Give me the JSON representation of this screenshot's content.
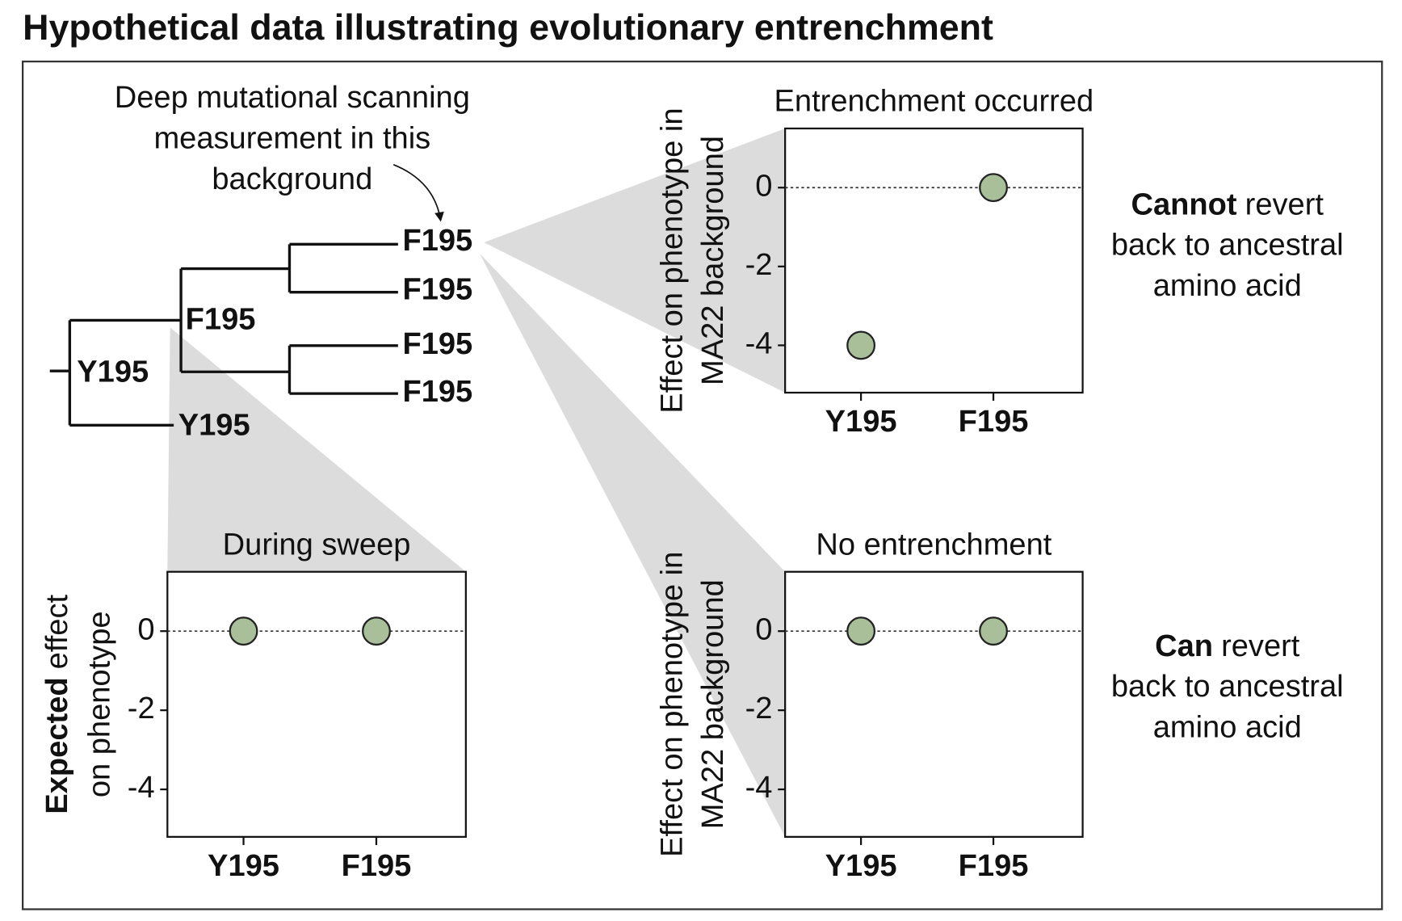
{
  "title": "Hypothetical data illustrating evolutionary entrenchment",
  "annotation": {
    "lines": [
      "Deep mutational scanning",
      "measurement in this",
      "background"
    ]
  },
  "tree": {
    "nodes": [
      {
        "label": "Y195",
        "color": "#a07a45"
      },
      {
        "label": "F195",
        "color": "#4a8aa5"
      },
      {
        "label": "Y195",
        "color": "#a07a45"
      },
      {
        "label": "F195",
        "color": "#4a8aa5"
      },
      {
        "label": "F195",
        "color": "#4a8aa5"
      },
      {
        "label": "F195",
        "color": "#4a8aa5"
      },
      {
        "label": "F195",
        "color": "#4a8aa5"
      }
    ]
  },
  "chart_data": [
    {
      "type": "dot",
      "title": "During sweep",
      "categories": [
        "Y195",
        "F195"
      ],
      "category_colors": [
        "#a07a45",
        "#4a8aa5"
      ],
      "values": [
        0,
        0
      ],
      "color": "#a9bf9a",
      "ylim": [
        -5.2,
        1.5
      ],
      "yticks": [
        0,
        -2,
        -4
      ],
      "reference_line": 0,
      "ylabel_lines": [
        {
          "parts": [
            {
              "text": "Expected",
              "bold": true
            },
            {
              "text": "effect"
            }
          ]
        },
        {
          "parts": [
            {
              "text": "on phenotype"
            }
          ]
        }
      ]
    },
    {
      "type": "dot",
      "title": "Entrenchment occurred",
      "categories": [
        "Y195",
        "F195"
      ],
      "category_colors": [
        "#a07a45",
        "#4a8aa5"
      ],
      "values": [
        -4,
        0
      ],
      "color": "#a9bf9a",
      "ylim": [
        -5.2,
        1.5
      ],
      "yticks": [
        0,
        -2,
        -4
      ],
      "reference_line": 0,
      "ylabel_lines": [
        {
          "parts": [
            {
              "text": "Effect on phenotype in"
            }
          ]
        },
        {
          "parts": [
            {
              "text": "MA22 background"
            }
          ]
        }
      ],
      "note_lines": [
        {
          "parts": [
            {
              "text": "Cannot",
              "bold": true
            },
            {
              "text": "revert"
            }
          ]
        },
        {
          "parts": [
            {
              "text": "back to ancestral"
            }
          ]
        },
        {
          "parts": [
            {
              "text": "amino acid"
            }
          ]
        }
      ]
    },
    {
      "type": "dot",
      "title": "No entrenchment",
      "categories": [
        "Y195",
        "F195"
      ],
      "category_colors": [
        "#a07a45",
        "#4a8aa5"
      ],
      "values": [
        0,
        0
      ],
      "color": "#a9bf9a",
      "ylim": [
        -5.2,
        1.5
      ],
      "yticks": [
        0,
        -2,
        -4
      ],
      "reference_line": 0,
      "ylabel_lines": [
        {
          "parts": [
            {
              "text": "Effect on phenotype in"
            }
          ]
        },
        {
          "parts": [
            {
              "text": "MA22 background"
            }
          ]
        }
      ],
      "note_lines": [
        {
          "parts": [
            {
              "text": "Can",
              "bold": true
            },
            {
              "text": "revert"
            }
          ]
        },
        {
          "parts": [
            {
              "text": "back to ancestral"
            }
          ]
        },
        {
          "parts": [
            {
              "text": "amino acid"
            }
          ]
        }
      ]
    }
  ]
}
